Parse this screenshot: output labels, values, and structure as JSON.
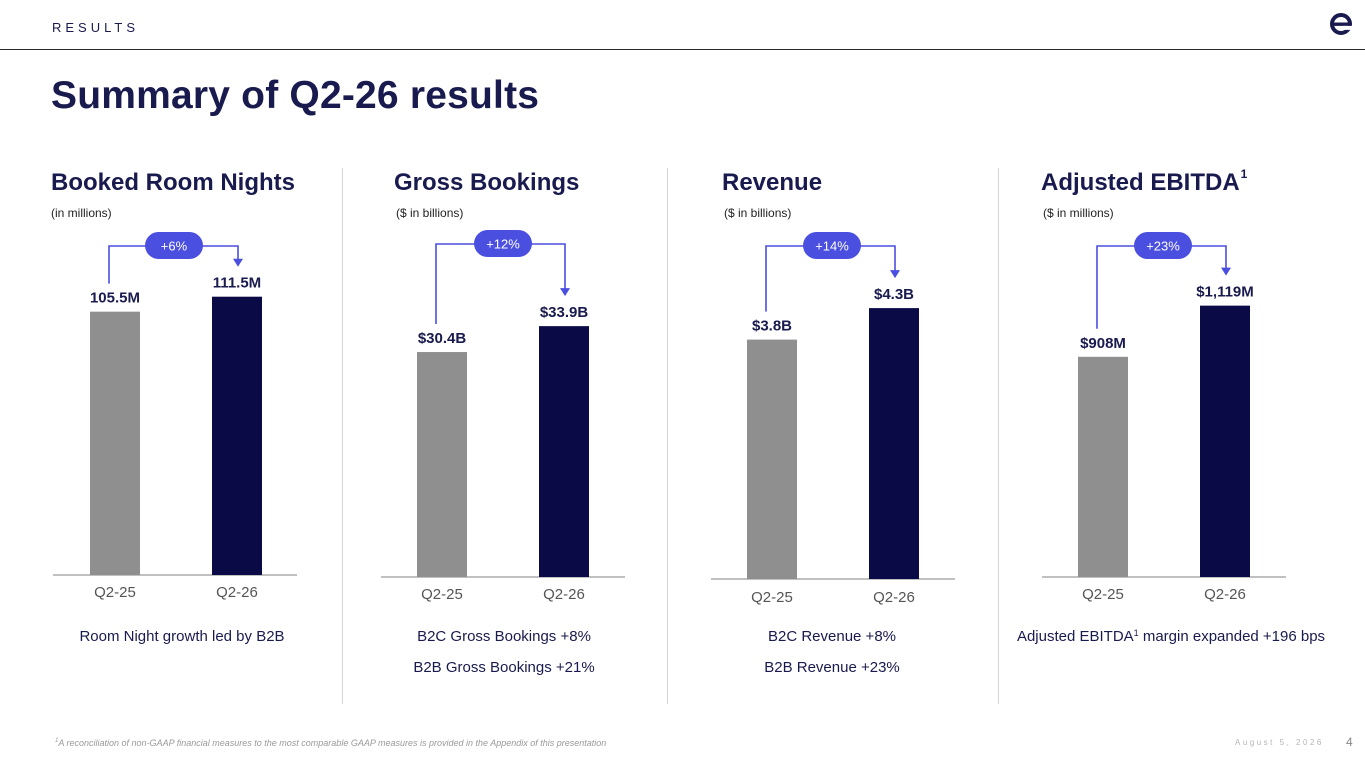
{
  "header": {
    "section": "RESULTS",
    "logo_icon": "expedia-e-logo"
  },
  "title": "Summary of Q2-26 results",
  "colors": {
    "navy": "#0a0a47",
    "gray": "#8f8f8f",
    "accent": "#4b4fe0",
    "text": "#191a4e"
  },
  "panels": [
    {
      "title": "Booked Room Nights",
      "title_sup": "",
      "unit": "(in millions)",
      "growth": "+6%",
      "notes": [
        {
          "text": "Room Night growth led by B2B",
          "sup": "",
          "rest": ""
        }
      ]
    },
    {
      "title": "Gross Bookings",
      "title_sup": "",
      "unit": "($ in billions)",
      "growth": "+12%",
      "notes": [
        {
          "text": "B2C Gross Bookings +8%",
          "sup": "",
          "rest": ""
        },
        {
          "text": "B2B Gross Bookings +21%",
          "sup": "",
          "rest": ""
        }
      ]
    },
    {
      "title": "Revenue",
      "title_sup": "",
      "unit": "($ in billions)",
      "growth": "+14%",
      "notes": [
        {
          "text": "B2C Revenue +8%",
          "sup": "",
          "rest": ""
        },
        {
          "text": "B2B Revenue +23%",
          "sup": "",
          "rest": ""
        }
      ]
    },
    {
      "title": "Adjusted EBITDA",
      "title_sup": "1",
      "unit": "($ in millions)",
      "growth": "+23%",
      "notes": [
        {
          "text": "Adjusted EBITDA",
          "sup": "1",
          "rest": " margin expanded +196 bps"
        }
      ]
    }
  ],
  "chart_data": [
    {
      "type": "bar",
      "title": "Booked Room Nights",
      "unit": "millions",
      "categories": [
        "Q2-25",
        "Q2-26"
      ],
      "values": [
        105.5,
        111.5
      ],
      "labels": [
        "105.5M",
        "111.5M"
      ]
    },
    {
      "type": "bar",
      "title": "Gross Bookings",
      "unit": "billions USD",
      "categories": [
        "Q2-25",
        "Q2-26"
      ],
      "values": [
        30.4,
        33.9
      ],
      "labels": [
        "$30.4B",
        "$33.9B"
      ]
    },
    {
      "type": "bar",
      "title": "Revenue",
      "unit": "billions USD",
      "categories": [
        "Q2-25",
        "Q2-26"
      ],
      "values": [
        3.8,
        4.3
      ],
      "labels": [
        "$3.8B",
        "$4.3B"
      ]
    },
    {
      "type": "bar",
      "title": "Adjusted EBITDA",
      "unit": "millions USD",
      "categories": [
        "Q2-25",
        "Q2-26"
      ],
      "values": [
        908,
        1119
      ],
      "labels": [
        "$908M",
        "$1,119M"
      ]
    }
  ],
  "footer": {
    "footnote_sup": "1",
    "footnote": "A reconciliation of non-GAAP financial measures to the most comparable GAAP measures is provided in the Appendix of this presentation",
    "date": "August 5, 2026",
    "page_number": "4"
  }
}
